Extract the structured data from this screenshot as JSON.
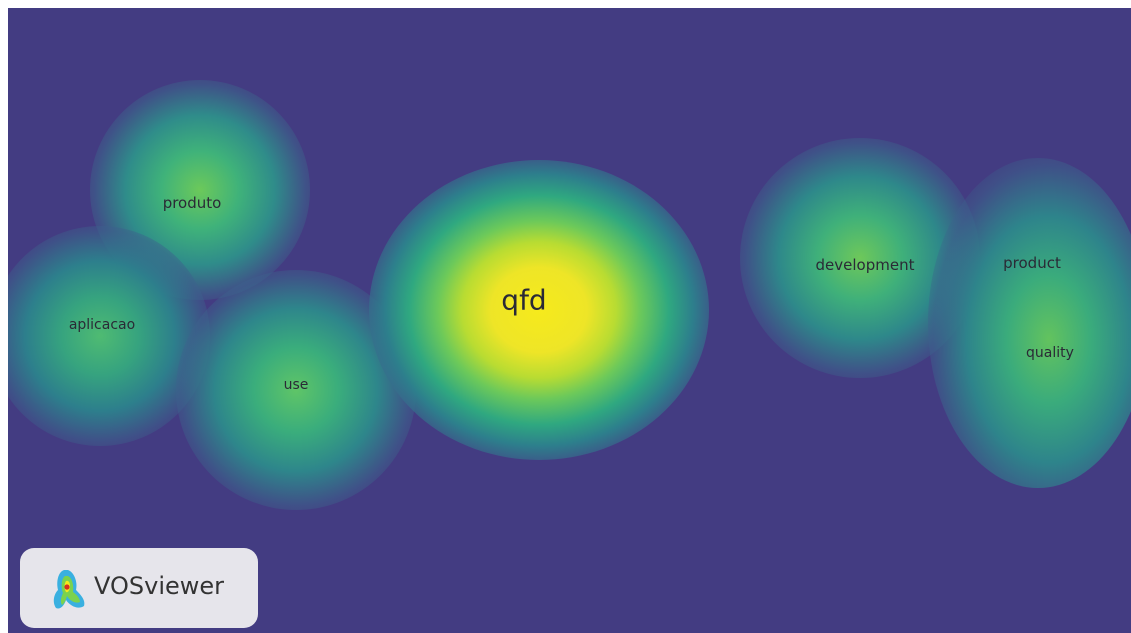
{
  "colors": {
    "background": "#433c82",
    "density_low": "#3b6c8f",
    "density_mid": "#2fa880",
    "density_high": "#7bd24d",
    "density_peak": "#f2e81c"
  },
  "terms": [
    {
      "id": "qfd",
      "label": "qfd",
      "density": 1.0
    },
    {
      "id": "produto",
      "label": "produto",
      "density": 0.55
    },
    {
      "id": "aplicacao",
      "label": "aplicacao",
      "density": 0.45
    },
    {
      "id": "use",
      "label": "use",
      "density": 0.5
    },
    {
      "id": "development",
      "label": "development",
      "density": 0.55
    },
    {
      "id": "product",
      "label": "product",
      "density": 0.45
    },
    {
      "id": "quality",
      "label": "quality",
      "density": 0.5
    }
  ],
  "logo": {
    "text": "VOSviewer",
    "icon": "vosviewer-logo-icon"
  }
}
